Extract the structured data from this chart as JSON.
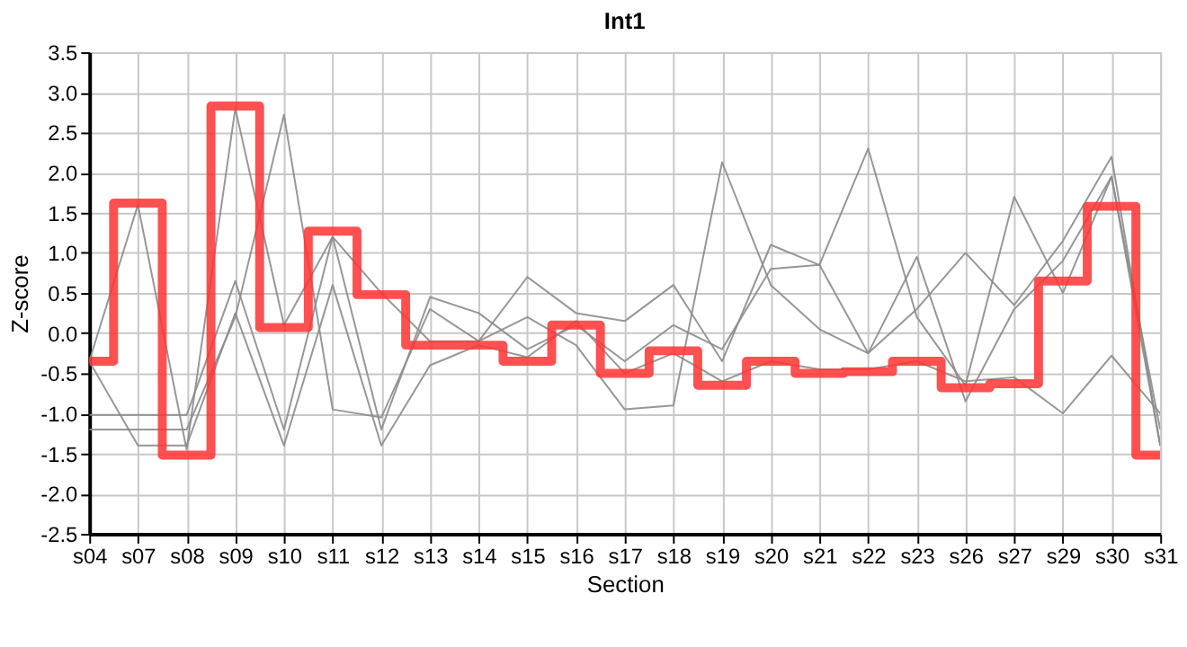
{
  "chart_data": {
    "type": "line",
    "title": "Int1",
    "xlabel": "Section",
    "ylabel": "Z-score",
    "categories": [
      "s04",
      "s07",
      "s08",
      "s09",
      "s10",
      "s11",
      "s12",
      "s13",
      "s14",
      "s15",
      "s16",
      "s17",
      "s18",
      "s19",
      "s20",
      "s21",
      "s22",
      "s23",
      "s26",
      "s27",
      "s29",
      "s30",
      "s31"
    ],
    "ylim": [
      -2.5,
      3.5
    ],
    "yticks": [
      {
        "value": -2.5,
        "label": "-2.5"
      },
      {
        "value": -2,
        "label": "-2.0"
      },
      {
        "value": -1.5,
        "label": "-1.5"
      },
      {
        "value": -1,
        "label": "-1.0"
      },
      {
        "value": -0.5,
        "label": "-0.5"
      },
      {
        "value": 0,
        "label": "0.0"
      },
      {
        "value": 0.5,
        "label": "0.5"
      },
      {
        "value": 1,
        "label": "1.0"
      },
      {
        "value": 1.5,
        "label": "1.5"
      },
      {
        "value": 2,
        "label": "2.0"
      },
      {
        "value": 2.5,
        "label": "2.5"
      },
      {
        "value": 3,
        "label": "3.0"
      },
      {
        "value": 3.5,
        "label": "3.5"
      }
    ],
    "grid": true,
    "legend": false,
    "series": [
      {
        "type": "line",
        "color": "#8c8c8c",
        "values": [
          -0.35,
          1.6,
          -1.45,
          2.8,
          0.1,
          1.2,
          0.5,
          -0.1,
          -0.1,
          0.7,
          0.25,
          0.15,
          0.6,
          -0.35,
          1.1,
          0.85,
          2.3,
          0.2,
          -0.65,
          1.7,
          0.5,
          1.95,
          -1.4
        ]
      },
      {
        "type": "line",
        "color": "#8c8c8c",
        "values": [
          -1.02,
          -1.02,
          -1.02,
          0.65,
          -1.2,
          1.2,
          -1.2,
          0.45,
          0.25,
          -0.2,
          0.1,
          -0.35,
          0.1,
          -0.2,
          0.8,
          0.85,
          -0.25,
          0.95,
          -0.85,
          0.3,
          0.9,
          1.95,
          -1.2
        ]
      },
      {
        "type": "line",
        "color": "#8c8c8c",
        "values": [
          -1.2,
          -1.2,
          -1.2,
          0.2,
          2.72,
          -0.95,
          -1.05,
          0.3,
          -0.1,
          0.2,
          -0.15,
          -0.95,
          -0.9,
          2.13,
          0.6,
          0.05,
          -0.25,
          0.3,
          1.0,
          0.35,
          1.15,
          2.2,
          -1.4
        ]
      },
      {
        "type": "line",
        "color": "#8c8c8c",
        "values": [
          -0.35,
          -1.4,
          -1.4,
          0.25,
          -1.4,
          0.6,
          -1.4,
          -0.4,
          -0.15,
          -0.3,
          0.15,
          -0.5,
          -0.25,
          -0.6,
          -0.35,
          -0.45,
          -0.45,
          -0.35,
          -0.6,
          -0.55,
          -1.0,
          -0.28,
          -1.0
        ]
      },
      {
        "type": "step",
        "color": "#ff3333",
        "values": [
          -0.35,
          1.62,
          -1.52,
          2.83,
          0.07,
          1.27,
          0.48,
          -0.15,
          -0.15,
          -0.35,
          0.1,
          -0.5,
          -0.22,
          -0.65,
          -0.35,
          -0.5,
          -0.48,
          -0.35,
          -0.68,
          -0.63,
          0.65,
          1.58,
          -1.52
        ]
      }
    ]
  }
}
